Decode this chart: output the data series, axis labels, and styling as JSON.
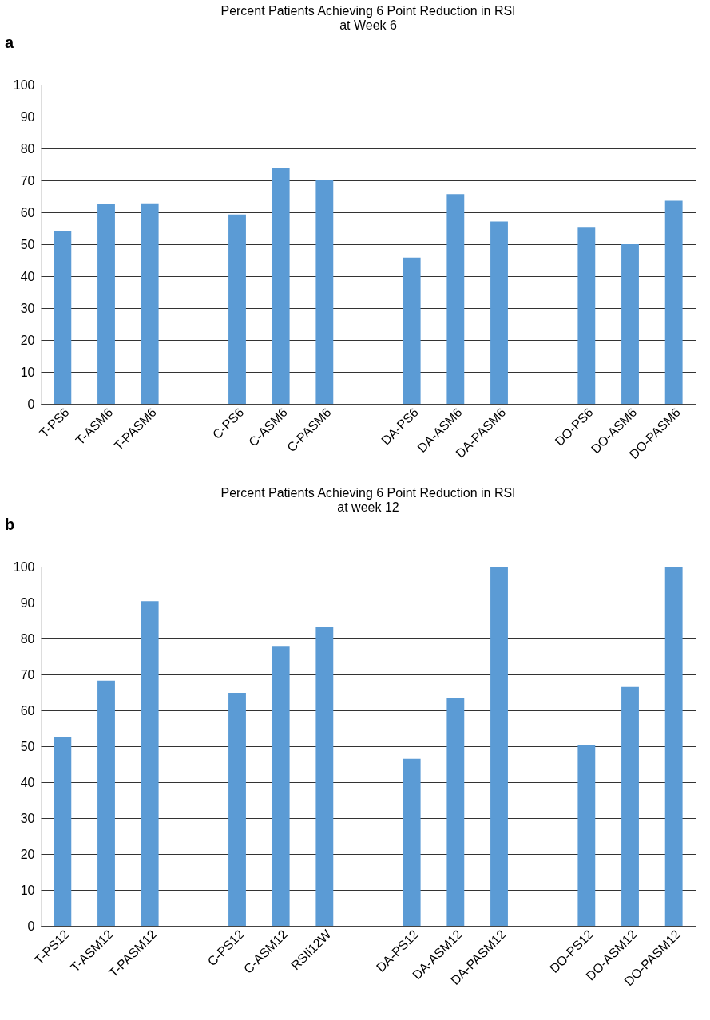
{
  "chart_data": [
    {
      "type": "bar",
      "title": "Percent Patients Achieving 6 Point Reduction in RSI\nat Week 6",
      "annotations": [
        "a"
      ],
      "categories": [
        "T-PS6",
        "T-ASM6",
        "T-PASM6",
        null,
        "C-PS6",
        "C-ASM6",
        "C-PASM6",
        null,
        "DA-PS6",
        "DA-ASM6",
        "DA-PASM6",
        null,
        "DO-PS6",
        "DO-ASM6",
        "DO-PASM6"
      ],
      "values": [
        54,
        62.6,
        62.8,
        null,
        59.3,
        73.9,
        70,
        null,
        45.8,
        65.7,
        57.1,
        null,
        55.2,
        50,
        63.6
      ],
      "color": "#5b9bd5",
      "ylim": [
        0,
        100
      ],
      "yticks": [
        0,
        10,
        20,
        30,
        40,
        50,
        60,
        70,
        80,
        90,
        100
      ],
      "grid": "y"
    },
    {
      "type": "bar",
      "title": "Percent Patients Achieving 6 Point Reduction in RSI\nat week 12",
      "annotations": [
        "b"
      ],
      "categories": [
        "T-PS12",
        "T-ASM12",
        "T-PASM12",
        null,
        "C-PS12",
        "C-ASM12",
        "RSIi12W",
        null,
        "DA-PS12",
        "DA-ASM12",
        "DA-PASM12",
        null,
        "DO-PS12",
        "DO-ASM12",
        "DO-PASM12"
      ],
      "values": [
        52.5,
        68.3,
        90.4,
        null,
        64.9,
        77.7,
        83.2,
        null,
        46.5,
        63.5,
        100,
        null,
        50.3,
        66.5,
        100
      ],
      "color": "#5b9bd5",
      "ylim": [
        0,
        100
      ],
      "yticks": [
        0,
        10,
        20,
        30,
        40,
        50,
        60,
        70,
        80,
        90,
        100
      ],
      "grid": "y"
    }
  ]
}
